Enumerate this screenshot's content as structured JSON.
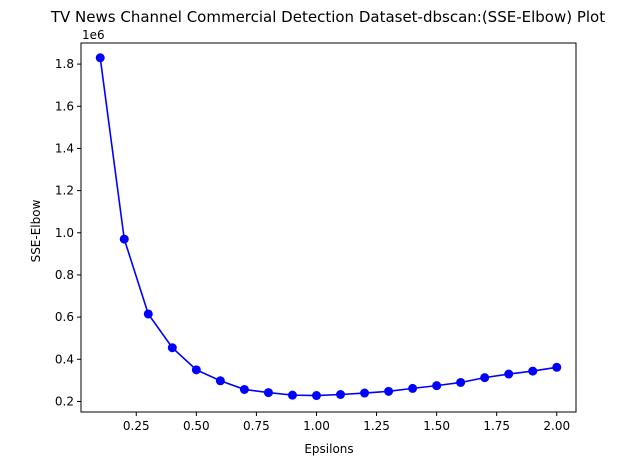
{
  "chart_data": {
    "type": "line",
    "title": "TV News Channel Commercial Detection Dataset-dbscan:(SSE-Elbow) Plot",
    "xlabel": "Epsilons",
    "ylabel": "SSE-Elbow",
    "y_offset_label": "1e6",
    "y_scale_factor": 1000000,
    "xlim": [
      0.02,
      2.08
    ],
    "ylim": [
      0.15,
      1.9
    ],
    "x_ticks": [
      0.25,
      0.5,
      0.75,
      1.0,
      1.25,
      1.5,
      1.75,
      2.0
    ],
    "x_tick_labels": [
      "0.25",
      "0.50",
      "0.75",
      "1.00",
      "1.25",
      "1.50",
      "1.75",
      "2.00"
    ],
    "y_ticks": [
      0.2,
      0.4,
      0.6,
      0.8,
      1.0,
      1.2,
      1.4,
      1.6,
      1.8
    ],
    "y_tick_labels": [
      "0.2",
      "0.4",
      "0.6",
      "0.8",
      "1.0",
      "1.2",
      "1.4",
      "1.6",
      "1.8"
    ],
    "grid": false,
    "series": [
      {
        "color": "#0000ff",
        "marker": "circle",
        "x": [
          0.1,
          0.2,
          0.3,
          0.4,
          0.5,
          0.6,
          0.7,
          0.8,
          0.9,
          1.0,
          1.1,
          1.2,
          1.3,
          1.4,
          1.5,
          1.6,
          1.7,
          1.8,
          1.9,
          2.0
        ],
        "y": [
          1.83,
          0.97,
          0.615,
          0.455,
          0.35,
          0.298,
          0.257,
          0.242,
          0.23,
          0.228,
          0.233,
          0.24,
          0.248,
          0.262,
          0.275,
          0.29,
          0.313,
          0.33,
          0.344,
          0.362
        ]
      }
    ]
  }
}
